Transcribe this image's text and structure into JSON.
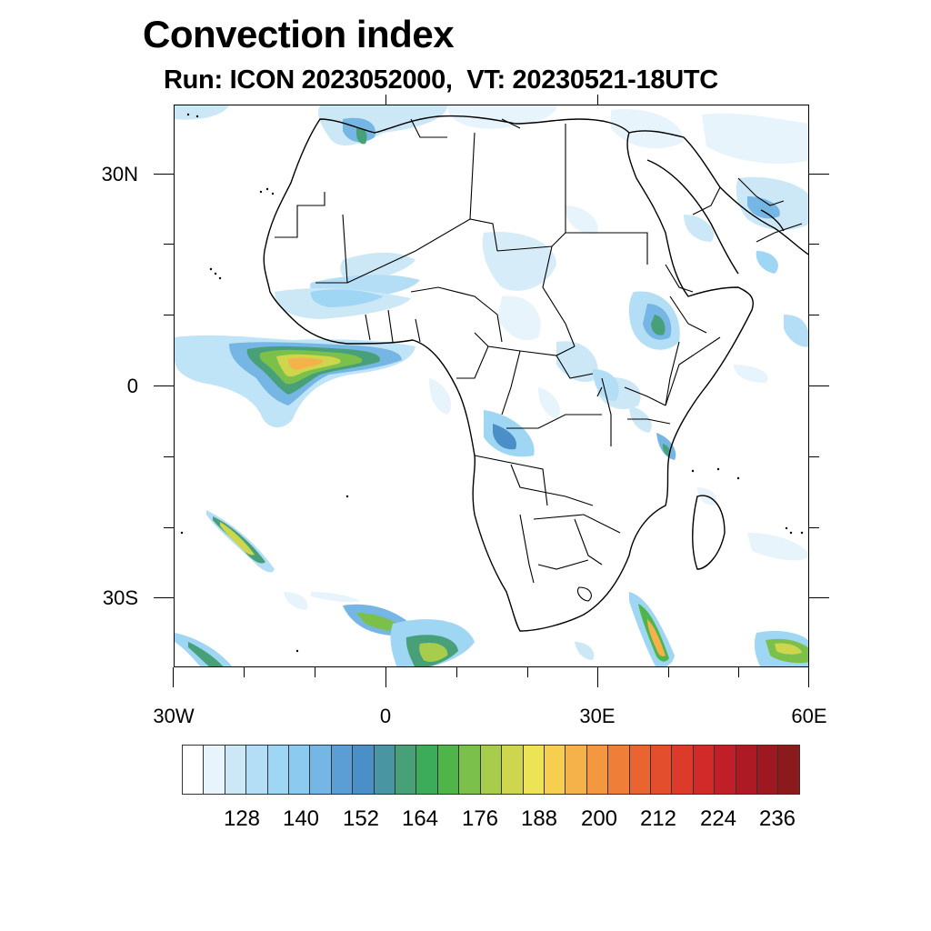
{
  "title": "Convection index",
  "subtitle": "Run: ICON 2023052000,  VT: 20230521-18UTC",
  "axes": {
    "lat_labels": [
      "30N",
      "0",
      "30S"
    ],
    "lon_labels": [
      "30W",
      "0",
      "30E",
      "60E"
    ]
  },
  "map": {
    "projection": "cylindrical-equidistant",
    "lon_range_deg": [
      -30,
      60
    ],
    "lat_range_deg": [
      -40,
      40
    ],
    "background": "#ffffff",
    "border_color": "#000000",
    "regions": [
      {
        "name": "gulf-of-guinea-convection",
        "intensity": "high"
      },
      {
        "name": "west-african-band",
        "intensity": "low"
      },
      {
        "name": "ethiopian-highlands",
        "intensity": "medium"
      },
      {
        "name": "south-atlantic-front",
        "intensity": "medium"
      },
      {
        "name": "mozambique-channel-south",
        "intensity": "high"
      },
      {
        "name": "southern-ocean",
        "intensity": "medium"
      },
      {
        "name": "arabian-gulf",
        "intensity": "low"
      },
      {
        "name": "mediterranean",
        "intensity": "low"
      }
    ]
  },
  "colorbar": {
    "labels": [
      "128",
      "140",
      "152",
      "164",
      "176",
      "188",
      "200",
      "212",
      "224",
      "236"
    ],
    "colors": [
      "#ffffff",
      "#e8f4fb",
      "#cce8f7",
      "#b4def6",
      "#9ed6f4",
      "#8ccbef",
      "#76b6e4",
      "#5b9ed6",
      "#4a8fc6",
      "#4a95a2",
      "#48a078",
      "#3cab5a",
      "#4fb54a",
      "#7cc04c",
      "#a8cc4c",
      "#cdd64c",
      "#ede356",
      "#f6cf50",
      "#f5b24a",
      "#f39840",
      "#ef7e38",
      "#e96431",
      "#e34f2c",
      "#dc3a2a",
      "#d22929",
      "#c11f27",
      "#ad1a23",
      "#9d1820",
      "#8b1a1c"
    ]
  }
}
